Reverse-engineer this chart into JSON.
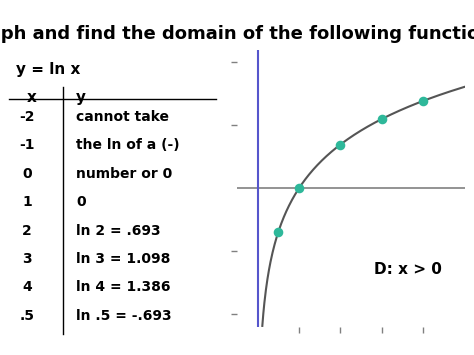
{
  "title": "Graph and find the domain of the following functions.",
  "title_fontsize": 13,
  "title_fontweight": "bold",
  "bg_color": "#ffffff",
  "equation": "y = ln x",
  "table_x_label": "x",
  "table_y_label": "y",
  "table_rows": [
    [
      "-2",
      "cannot take"
    ],
    [
      "-1",
      "the ln of a (-)"
    ],
    [
      "0",
      "number or 0"
    ],
    [
      "1",
      "0"
    ],
    [
      "2",
      "ln 2 = .693"
    ],
    [
      "3",
      "ln 3 = 1.098"
    ],
    [
      "4",
      "ln 4 = 1.386"
    ],
    [
      ".5",
      "ln .5 = -.693"
    ]
  ],
  "domain_label": "D: x > 0",
  "dot_color": "#2eb89a",
  "dot_points_x": [
    0.5,
    1,
    2,
    3,
    4
  ],
  "dot_points_y": [
    -0.693,
    0,
    0.693,
    1.098,
    1.386
  ],
  "curve_color": "#555555",
  "axis_color": "#808080",
  "yaxis_color": "#5555cc",
  "graph_xlim": [
    -0.5,
    5.0
  ],
  "graph_ylim": [
    -2.2,
    2.2
  ]
}
